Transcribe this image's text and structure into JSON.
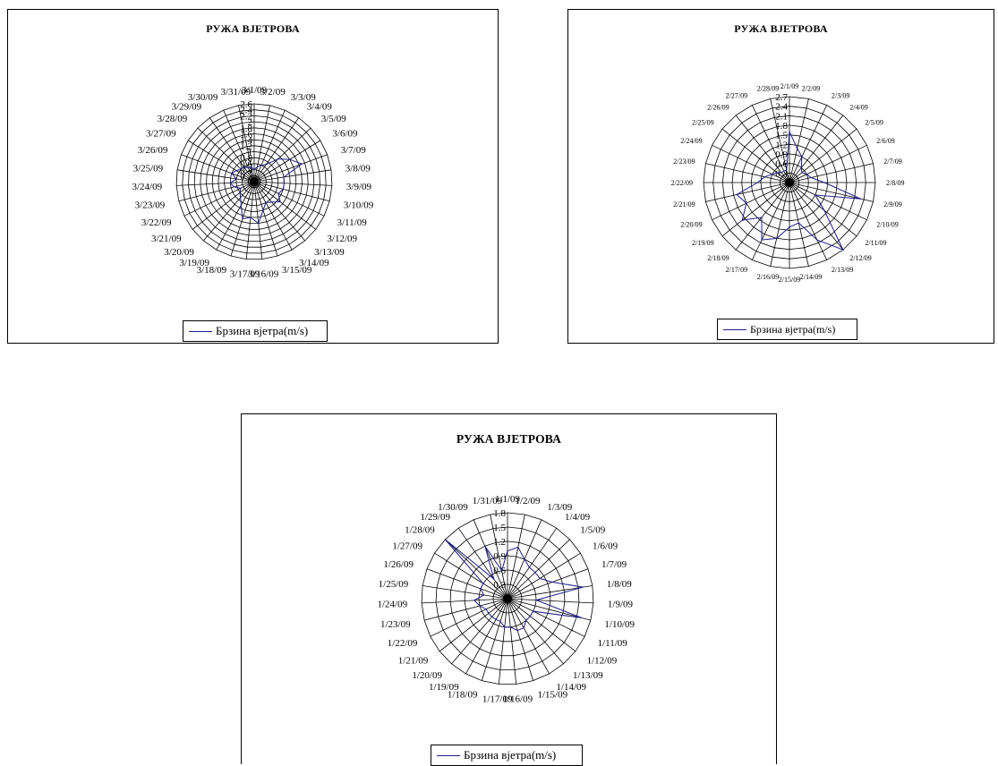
{
  "chart_data": [
    {
      "id": "march",
      "type": "radar",
      "title": "РУЖА ВЈЕТРОВА",
      "legend": "Брзина вјетра(m/s)",
      "categories": [
        "3/1/09",
        "3/2/09",
        "3/3/09",
        "3/4/09",
        "3/5/09",
        "3/6/09",
        "3/7/09",
        "3/8/09",
        "3/9/09",
        "3/10/09",
        "3/11/09",
        "3/12/09",
        "3/13/09",
        "3/14/09",
        "3/15/09",
        "3/16/09",
        "3/17/09",
        "3/18/09",
        "3/19/09",
        "3/20/09",
        "3/21/09",
        "3/22/09",
        "3/23/09",
        "3/24/09",
        "3/25/09",
        "3/26/09",
        "3/27/09",
        "3/28/09",
        "3/29/09",
        "3/30/09",
        "3/31/09"
      ],
      "rmax": 2.6,
      "ticks": [
        "2.6",
        "2.4",
        "2.2",
        "2",
        "1.8",
        "1.6",
        "1.4",
        "1.2",
        "1",
        "0.8",
        "0.6",
        "0.4",
        "0.2"
      ],
      "series": [
        {
          "name": "Брзина вјетра(m/s)",
          "color": "#1c1c8c",
          "values": [
            0.4,
            0.5,
            0.6,
            0.7,
            1.1,
            1.4,
            1.7,
            1.0,
            1.0,
            1.0,
            0.9,
            1.1,
            0.9,
            0.8,
            1.0,
            1.4,
            1.2,
            1.3,
            0.9,
            0.7,
            0.6,
            0.5,
            0.7,
            0.8,
            0.6,
            0.8,
            0.7,
            0.6,
            0.6,
            0.5,
            0.5
          ]
        }
      ]
    },
    {
      "id": "feb",
      "type": "radar",
      "title": "РУЖА ВЈЕТРОВА",
      "legend": "Брзина вјетра(m/s)",
      "categories": [
        "2/1/09",
        "2/2/09",
        "2/3/09",
        "2/4/09",
        "2/5/09",
        "2/6/09",
        "2/7/09",
        "2/8/09",
        "2/9/09",
        "2/10/09",
        "2/11/09",
        "2/12/09",
        "2/13/09",
        "2/14/09",
        "2/15/09",
        "2/16/09",
        "2/17/09",
        "2/18/09",
        "2/19/09",
        "2/20/09",
        "2/21/09",
        "2/22/09",
        "2/23/09",
        "2/24/09",
        "2/25/09",
        "2/26/09",
        "2/27/09",
        "2/28/09"
      ],
      "rmax": 2.7,
      "ticks": [
        "2.7",
        "2.4",
        "2.1",
        "1.8",
        "1.5",
        "1.2",
        "0.9",
        "0.6",
        "0.3"
      ],
      "series": [
        {
          "name": "Брзина вјетра(m/s)",
          "color": "#1c1c8c",
          "values": [
            1.6,
            1.1,
            0.9,
            0.6,
            0.5,
            0.6,
            0.7,
            1.1,
            2.3,
            0.9,
            1.4,
            2.7,
            2.0,
            1.3,
            1.4,
            1.8,
            2.0,
            1.4,
            1.9,
            1.5,
            1.7,
            1.0,
            0.8,
            0.6,
            0.5,
            0.4,
            0.4,
            0.4
          ]
        }
      ]
    },
    {
      "id": "jan",
      "type": "radar",
      "title": "РУЖА ВЈЕТРОВА",
      "legend": "Брзина вјетра(m/s)",
      "categories": [
        "1/1/09",
        "1/2/09",
        "1/3/09",
        "1/4/09",
        "1/5/09",
        "1/6/09",
        "1/7/09",
        "1/8/09",
        "1/9/09",
        "1/10/09",
        "1/11/09",
        "1/12/09",
        "1/13/09",
        "1/14/09",
        "1/15/09",
        "1/16/09",
        "1/17/09",
        "1/18/09",
        "1/19/09",
        "1/20/09",
        "1/21/09",
        "1/22/09",
        "1/23/09",
        "1/24/09",
        "1/25/09",
        "1/26/09",
        "1/27/09",
        "1/28/09",
        "1/29/09",
        "1/30/09",
        "1/31/09"
      ],
      "rmax": 1.8,
      "ticks": [
        "1.8",
        "1.5",
        "1.2",
        "0.9",
        "0.6",
        "0.3"
      ],
      "series": [
        {
          "name": "Брзина вјетра(m/s)",
          "color": "#1c1c8c",
          "values": [
            1.0,
            1.1,
            0.9,
            0.8,
            0.8,
            0.8,
            1.0,
            1.6,
            0.6,
            1.6,
            0.6,
            0.6,
            0.6,
            0.7,
            0.7,
            0.6,
            0.6,
            0.5,
            0.5,
            0.5,
            0.5,
            0.5,
            0.6,
            0.7,
            0.5,
            0.6,
            0.6,
            1.8,
            0.5,
            1.2,
            0.6
          ]
        }
      ]
    }
  ]
}
